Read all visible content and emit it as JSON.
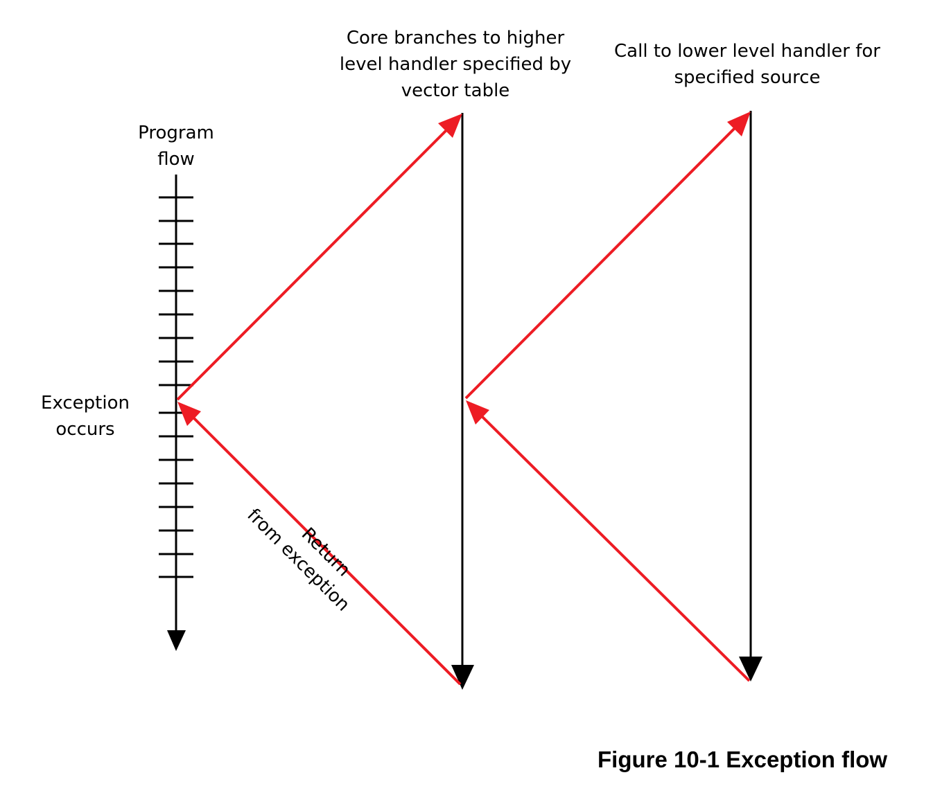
{
  "labels": {
    "program_flow": [
      "Program",
      "flow"
    ],
    "exception_occurs": [
      "Exception",
      "occurs"
    ],
    "core_branches": [
      "Core branches to higher",
      "level handler specified by",
      "vector table"
    ],
    "call_lower": [
      "Call to lower level handler for",
      "specified source"
    ],
    "return_from": [
      "Return",
      "from exception"
    ]
  },
  "caption": "Figure 10-1 Exception flow",
  "colors": {
    "flow_arrow": "#ed1c24",
    "timeline": "#000000"
  }
}
